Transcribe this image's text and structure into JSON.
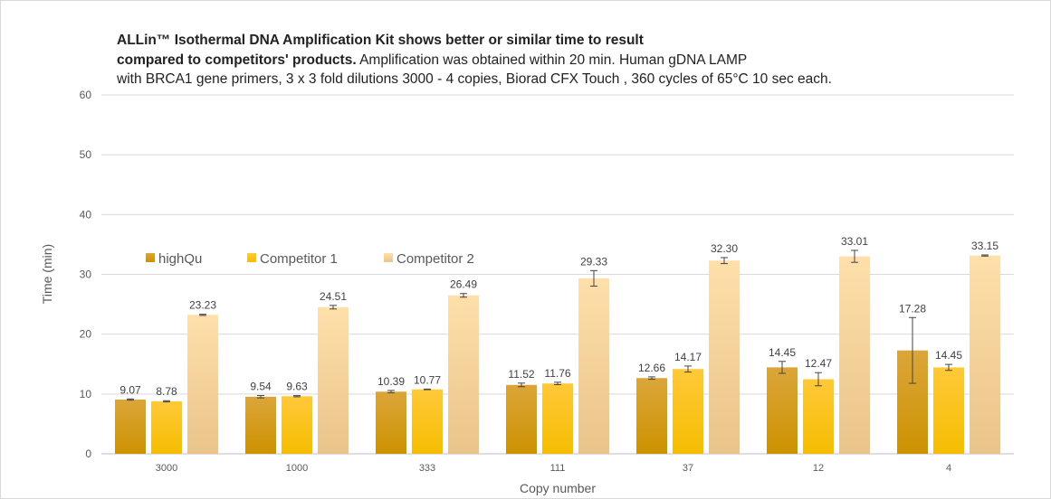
{
  "title": {
    "line1_bold": "ALLin™ Isothermal DNA Amplification Kit shows better  or similar time to result",
    "line2_bold": "compared to competitors' products.",
    "line2_rest": " Amplification was obtained within 20 min. Human gDNA LAMP",
    "line3": "with BRCA1 gene primers, 3 x 3 fold dilutions 3000 - 4 copies, Biorad CFX Touch , 360 cycles of 65°C 10 sec each."
  },
  "chart_data": {
    "type": "bar",
    "xlabel": "Copy number",
    "ylabel": "Time (min)",
    "ylim": [
      0,
      60
    ],
    "yticks": [
      0,
      10,
      20,
      30,
      40,
      50,
      60
    ],
    "grid": true,
    "legend_position": "top-left",
    "categories": [
      "3000",
      "1000",
      "333",
      "111",
      "37",
      "12",
      "4"
    ],
    "series": [
      {
        "name": "highQu",
        "color_top": "#dba63a",
        "color_bottom": "#cc9200",
        "values": [
          9.07,
          9.54,
          10.39,
          11.52,
          12.66,
          14.45,
          17.28
        ],
        "labels": [
          "9.07",
          "9.54",
          "10.39",
          "11.52",
          "12.66",
          "14.45",
          "17.28"
        ],
        "errors": [
          0.1,
          0.2,
          0.2,
          0.3,
          0.2,
          1.0,
          5.5
        ]
      },
      {
        "name": "Competitor 1",
        "color_top": "#ffc93a",
        "color_bottom": "#f5bd00",
        "values": [
          8.78,
          9.63,
          10.77,
          11.76,
          14.17,
          12.47,
          14.45
        ],
        "labels": [
          "8.78",
          "9.63",
          "10.77",
          "11.76",
          "14.17",
          "12.47",
          "14.45"
        ],
        "errors": [
          0.1,
          0.1,
          0.05,
          0.2,
          0.5,
          1.1,
          0.5
        ]
      },
      {
        "name": "Competitor 2",
        "color_top": "#ffdfaa",
        "color_bottom": "#e9c48a",
        "values": [
          23.23,
          24.51,
          26.49,
          29.33,
          32.3,
          33.01,
          33.15
        ],
        "labels": [
          "23.23",
          "24.51",
          "26.49",
          "29.33",
          "32.30",
          "33.01",
          "33.15"
        ],
        "errors": [
          0.1,
          0.3,
          0.3,
          1.3,
          0.5,
          1.0,
          0.1
        ]
      }
    ]
  }
}
